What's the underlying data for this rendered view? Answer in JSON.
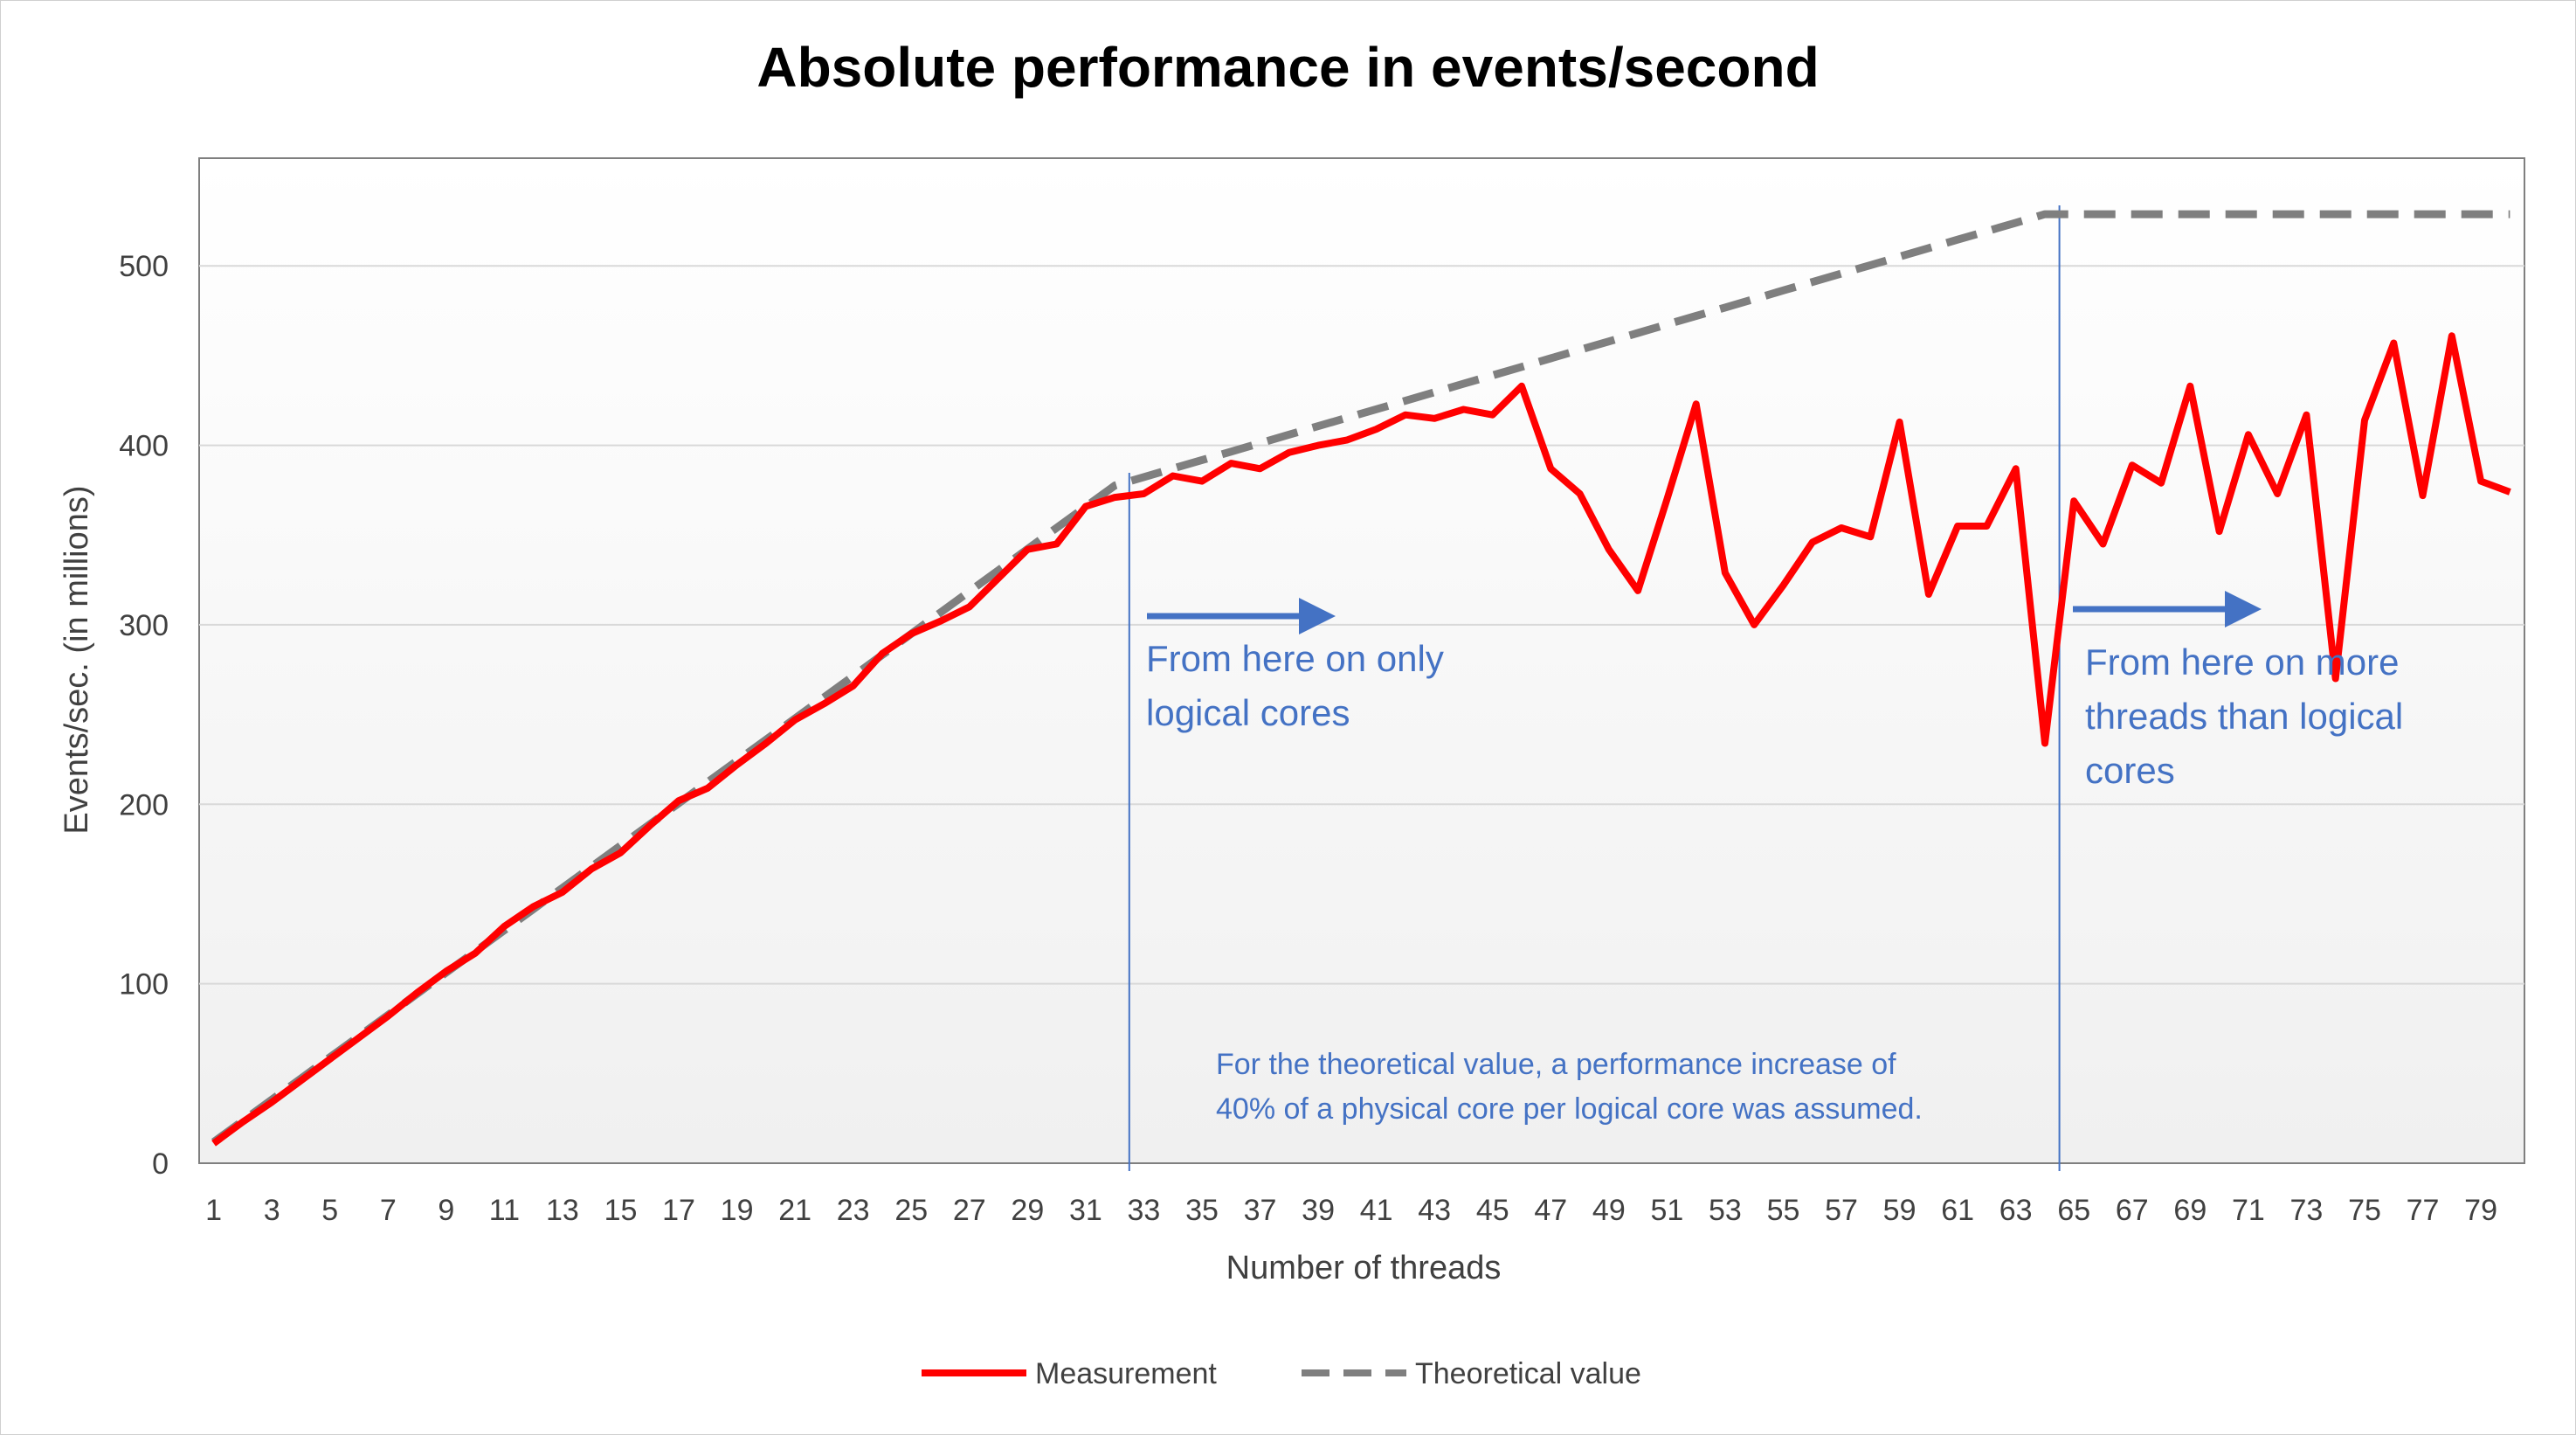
{
  "chart_data": {
    "type": "line",
    "title": "Absolute performance in events/second",
    "xlabel": "Number of threads",
    "ylabel": "Events/sec. (in millions)",
    "ylim": [
      0,
      560
    ],
    "yticks": [
      0,
      100,
      200,
      300,
      400,
      500
    ],
    "xlim": [
      1,
      80
    ],
    "xtick_labels": [
      "1",
      "3",
      "5",
      "7",
      "9",
      "11",
      "13",
      "15",
      "17",
      "19",
      "21",
      "23",
      "25",
      "27",
      "29",
      "31",
      "33",
      "35",
      "37",
      "39",
      "41",
      "43",
      "45",
      "47",
      "49",
      "51",
      "53",
      "55",
      "57",
      "59",
      "61",
      "63",
      "65",
      "67",
      "69",
      "71",
      "73",
      "75",
      "77",
      "79"
    ],
    "grid": true,
    "legend_position": "bottom",
    "x": [
      1,
      2,
      3,
      4,
      5,
      6,
      7,
      8,
      9,
      10,
      11,
      12,
      13,
      14,
      15,
      16,
      17,
      18,
      19,
      20,
      21,
      22,
      23,
      24,
      25,
      26,
      27,
      28,
      29,
      30,
      31,
      32,
      33,
      34,
      35,
      36,
      37,
      38,
      39,
      40,
      41,
      42,
      43,
      44,
      45,
      46,
      47,
      48,
      49,
      50,
      51,
      52,
      53,
      54,
      55,
      56,
      57,
      58,
      59,
      60,
      61,
      62,
      63,
      64,
      65,
      66,
      67,
      68,
      69,
      70,
      71,
      72,
      73,
      74,
      75,
      76,
      77,
      78,
      79,
      80
    ],
    "series": [
      {
        "name": "Measurement",
        "color": "#ff0000",
        "style": "solid",
        "values": [
          11,
          23,
          34,
          46,
          58,
          70,
          82,
          95,
          107,
          117,
          132,
          143,
          151,
          164,
          173,
          188,
          202,
          209,
          222,
          234,
          247,
          256,
          266,
          284,
          295,
          302,
          310,
          326,
          342,
          345,
          366,
          371,
          373,
          383,
          380,
          390,
          387,
          396,
          400,
          403,
          409,
          417,
          415,
          420,
          417,
          433,
          387,
          373,
          342,
          319,
          370,
          423,
          329,
          300,
          322,
          346,
          354,
          349,
          413,
          317,
          355,
          355,
          387,
          234,
          369,
          345,
          389,
          379,
          433,
          352,
          406,
          373,
          417,
          270,
          414,
          457,
          372,
          461,
          380,
          374
        ]
      },
      {
        "name": "Theoretical value",
        "color": "#7f7f7f",
        "style": "dashed",
        "values": [
          11.8,
          23.6,
          35.4,
          47.2,
          59,
          70.8,
          82.6,
          94.4,
          106.2,
          118,
          129.8,
          141.6,
          153.4,
          165.2,
          177,
          188.8,
          200.6,
          212.4,
          224.2,
          236,
          247.8,
          259.6,
          271.4,
          283.2,
          295,
          306.8,
          318.6,
          330.4,
          342.2,
          354,
          365.8,
          377.6,
          382.3,
          387.1,
          391.8,
          396.5,
          401.2,
          406,
          410.7,
          415.4,
          420.1,
          424.8,
          429.6,
          434.3,
          439,
          443.7,
          448.5,
          453.2,
          457.9,
          462.6,
          467.4,
          472.1,
          476.8,
          481.5,
          486.3,
          491,
          495.7,
          500.4,
          505.1,
          509.9,
          514.6,
          519.3,
          524,
          528.8,
          528.8,
          528.8,
          528.8,
          528.8,
          528.8,
          528.8,
          528.8,
          528.8,
          528.8,
          528.8,
          528.8,
          528.8,
          528.8,
          528.8,
          528.8,
          528.8
        ]
      }
    ],
    "vertical_markers": [
      32.5,
      64.5
    ],
    "annotations": {
      "logical_line1": "From here on only",
      "logical_line2": "logical cores",
      "threads_line1": "From here on more",
      "threads_line2": "threads than logical",
      "threads_line3": "cores",
      "note_line1": "For the theoretical value, a performance increase of",
      "note_line2": "40% of a physical core per logical core was assumed."
    },
    "colors": {
      "annotation": "#4472c4",
      "grid": "#d9d9d9"
    }
  }
}
